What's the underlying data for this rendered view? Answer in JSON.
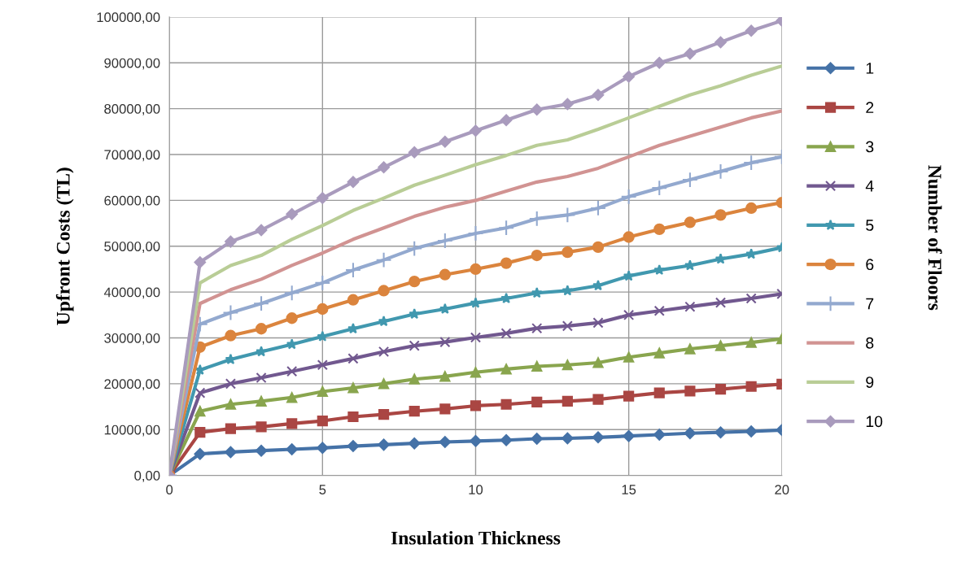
{
  "chart_data": {
    "type": "line",
    "xlabel": "Insulation Thickness",
    "ylabel": "Upfront Costs (TL)",
    "legend_title": "Number of Floors",
    "x": [
      0,
      1,
      2,
      3,
      4,
      5,
      6,
      7,
      8,
      9,
      10,
      11,
      12,
      13,
      14,
      15,
      16,
      17,
      18,
      19,
      20
    ],
    "xlim": [
      0,
      20
    ],
    "xticks": [
      0,
      5,
      10,
      15,
      20
    ],
    "ylim": [
      0,
      100000
    ],
    "yticks": [
      {
        "value": 0,
        "label": "0,00"
      },
      {
        "value": 10000,
        "label": "10000,00"
      },
      {
        "value": 20000,
        "label": "20000,00"
      },
      {
        "value": 30000,
        "label": "30000,00"
      },
      {
        "value": 40000,
        "label": "40000,00"
      },
      {
        "value": 50000,
        "label": "50000,00"
      },
      {
        "value": 60000,
        "label": "60000,00"
      },
      {
        "value": 70000,
        "label": "70000,00"
      },
      {
        "value": 80000,
        "label": "80000,00"
      },
      {
        "value": 90000,
        "label": "90000,00"
      },
      {
        "value": 100000,
        "label": "100000,00"
      }
    ],
    "grid": true,
    "legend": "right",
    "series": [
      {
        "name": "1",
        "color": "#4572a7",
        "marker": "diamond",
        "values": [
          0,
          4700,
          5100,
          5400,
          5700,
          6000,
          6400,
          6700,
          7000,
          7300,
          7500,
          7700,
          8000,
          8100,
          8300,
          8600,
          8900,
          9200,
          9400,
          9600,
          9900
        ]
      },
      {
        "name": "2",
        "color": "#aa4643",
        "marker": "square",
        "values": [
          0,
          9400,
          10200,
          10600,
          11300,
          11900,
          12800,
          13300,
          14000,
          14500,
          15200,
          15500,
          16000,
          16200,
          16600,
          17300,
          18000,
          18400,
          18800,
          19400,
          19900
        ]
      },
      {
        "name": "3",
        "color": "#89a54e",
        "marker": "triangle",
        "values": [
          0,
          14000,
          15500,
          16200,
          17000,
          18300,
          19100,
          20000,
          21000,
          21600,
          22500,
          23200,
          23800,
          24100,
          24600,
          25800,
          26700,
          27600,
          28300,
          29000,
          29800
        ]
      },
      {
        "name": "4",
        "color": "#71588f",
        "marker": "cross",
        "values": [
          0,
          18000,
          20000,
          21300,
          22700,
          24100,
          25500,
          27000,
          28300,
          29100,
          30100,
          31000,
          32100,
          32600,
          33300,
          35000,
          35900,
          36800,
          37700,
          38600,
          39600
        ]
      },
      {
        "name": "5",
        "color": "#4198af",
        "marker": "star",
        "values": [
          0,
          23000,
          25300,
          27000,
          28600,
          30300,
          32000,
          33600,
          35200,
          36300,
          37600,
          38600,
          39800,
          40300,
          41400,
          43500,
          44800,
          45800,
          47200,
          48300,
          49700
        ]
      },
      {
        "name": "6",
        "color": "#db843d",
        "marker": "circle",
        "values": [
          0,
          28000,
          30500,
          32000,
          34300,
          36300,
          38300,
          40300,
          42300,
          43800,
          45000,
          46300,
          48000,
          48700,
          49800,
          52000,
          53700,
          55200,
          56800,
          58300,
          59500
        ]
      },
      {
        "name": "7",
        "color": "#93a9cf",
        "marker": "plus",
        "values": [
          0,
          33000,
          35500,
          37500,
          39800,
          42000,
          44800,
          47000,
          49500,
          51200,
          52800,
          54000,
          56000,
          56800,
          58300,
          60800,
          62700,
          64500,
          66300,
          68200,
          69500
        ]
      },
      {
        "name": "8",
        "color": "#d19392",
        "marker": "none",
        "values": [
          0,
          37500,
          40500,
          42800,
          45800,
          48500,
          51500,
          54000,
          56500,
          58500,
          60000,
          62000,
          64000,
          65200,
          67000,
          69500,
          72000,
          74000,
          76000,
          78000,
          79500
        ]
      },
      {
        "name": "9",
        "color": "#b9cd96",
        "marker": "none",
        "values": [
          0,
          42000,
          45800,
          48000,
          51500,
          54500,
          57800,
          60500,
          63300,
          65500,
          67800,
          69800,
          72000,
          73200,
          75500,
          78000,
          80500,
          83000,
          85000,
          87300,
          89300
        ]
      },
      {
        "name": "10",
        "color": "#a99bbd",
        "marker": "diamond",
        "values": [
          0,
          46500,
          51000,
          53500,
          57000,
          60500,
          64000,
          67200,
          70500,
          72800,
          75200,
          77500,
          79800,
          81000,
          83000,
          87000,
          90000,
          92000,
          94500,
          97000,
          99200
        ]
      }
    ]
  }
}
